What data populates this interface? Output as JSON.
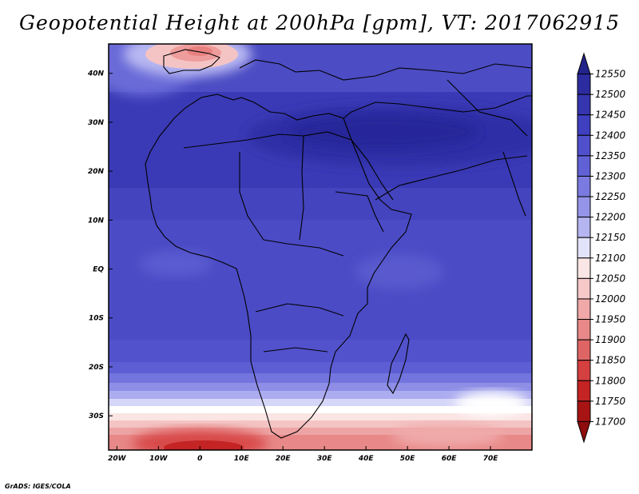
{
  "title": "Geopotential Height at 200hPa [gpm], VT: 2017062915",
  "credit": "GrADS: IGES/COLA",
  "map": {
    "lon_range": [
      -22,
      80
    ],
    "lat_range": [
      -37,
      46
    ],
    "lon_ticks": [
      {
        "value": -20,
        "label": "20W"
      },
      {
        "value": -10,
        "label": "10W"
      },
      {
        "value": 0,
        "label": "0"
      },
      {
        "value": 10,
        "label": "10E"
      },
      {
        "value": 20,
        "label": "20E"
      },
      {
        "value": 30,
        "label": "30E"
      },
      {
        "value": 40,
        "label": "40E"
      },
      {
        "value": 50,
        "label": "50E"
      },
      {
        "value": 60,
        "label": "60E"
      },
      {
        "value": 70,
        "label": "70E"
      }
    ],
    "lat_ticks": [
      {
        "value": 40,
        "label": "40N"
      },
      {
        "value": 30,
        "label": "30N"
      },
      {
        "value": 20,
        "label": "20N"
      },
      {
        "value": 10,
        "label": "10N"
      },
      {
        "value": 0,
        "label": "EQ"
      },
      {
        "value": -10,
        "label": "10S"
      },
      {
        "value": -20,
        "label": "20S"
      },
      {
        "value": -30,
        "label": "30S"
      }
    ]
  },
  "colorbar": {
    "levels": [
      "12550",
      "12500",
      "12450",
      "12400",
      "12350",
      "12300",
      "12250",
      "12200",
      "12150",
      "12100",
      "12050",
      "12000",
      "11950",
      "11900",
      "11850",
      "11800",
      "11750",
      "11700"
    ],
    "colors": [
      "#23238c",
      "#2c2ca0",
      "#3535b0",
      "#3f3fc0",
      "#5050cc",
      "#6161d6",
      "#7a7ae0",
      "#9494e8",
      "#b5b5f2",
      "#e2e2fa",
      "#fbe6e6",
      "#f6c8c8",
      "#f0a8a8",
      "#e88888",
      "#df6464",
      "#d54040",
      "#c42424",
      "#a81414",
      "#8e0c0c"
    ]
  }
}
